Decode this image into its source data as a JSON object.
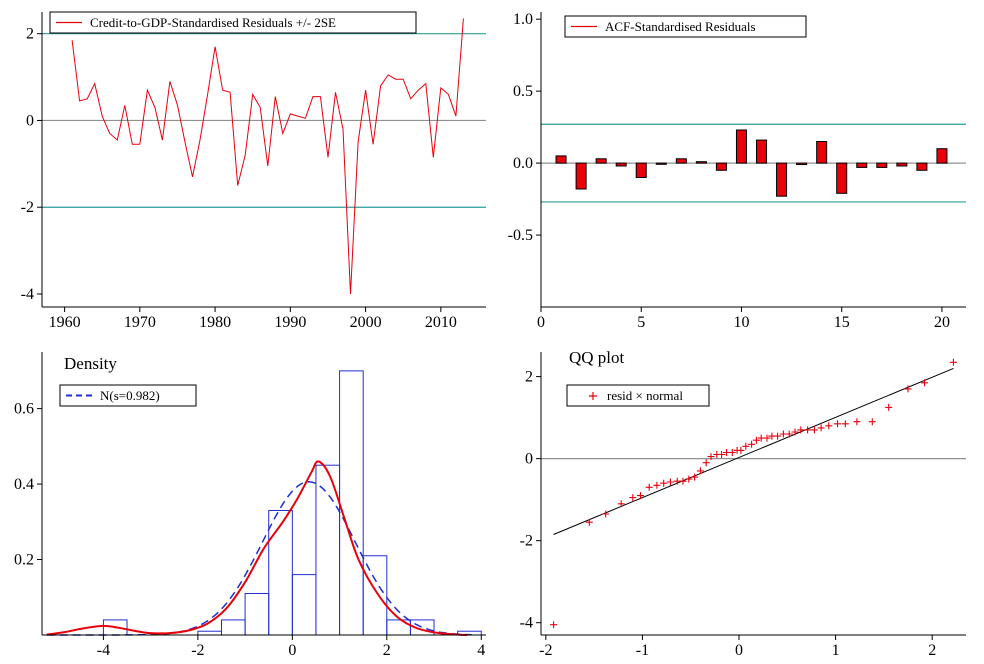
{
  "chart_data": [
    {
      "type": "line",
      "panel": "residuals",
      "title": "",
      "legend": {
        "label": "Credit-to-GDP-Standardised Residuals +/- 2SE",
        "position": "top-left"
      },
      "xlim": [
        1957,
        2016
      ],
      "ylim": [
        -4.3,
        2.5
      ],
      "xticks": [
        1960,
        1970,
        1980,
        1990,
        2000,
        2010
      ],
      "yticks": [
        -4,
        -2,
        0,
        2
      ],
      "bands": [
        2.0,
        -2.0
      ],
      "zero_line": 0,
      "x": [
        1961,
        1962,
        1963,
        1964,
        1965,
        1966,
        1967,
        1968,
        1969,
        1970,
        1971,
        1972,
        1973,
        1974,
        1975,
        1976,
        1977,
        1978,
        1979,
        1980,
        1981,
        1982,
        1983,
        1984,
        1985,
        1986,
        1987,
        1988,
        1989,
        1990,
        1991,
        1992,
        1993,
        1994,
        1995,
        1996,
        1997,
        1998,
        1999,
        2000,
        2001,
        2002,
        2003,
        2004,
        2005,
        2006,
        2007,
        2008,
        2009,
        2010,
        2011,
        2012,
        2013
      ],
      "values": [
        1.85,
        0.45,
        0.5,
        0.85,
        0.1,
        -0.3,
        -0.45,
        0.35,
        -0.55,
        -0.55,
        0.7,
        0.3,
        -0.45,
        0.9,
        0.35,
        -0.5,
        -1.3,
        -0.45,
        0.6,
        1.7,
        0.7,
        0.65,
        -1.5,
        -0.8,
        0.6,
        0.3,
        -1.05,
        0.55,
        -0.3,
        0.15,
        0.1,
        0.05,
        0.55,
        0.55,
        -0.85,
        0.65,
        -0.2,
        -4.0,
        -0.5,
        0.7,
        -0.55,
        0.8,
        1.05,
        0.95,
        0.95,
        0.5,
        0.7,
        0.85,
        -0.85,
        0.75,
        0.6,
        0.1,
        2.35
      ],
      "colors": {
        "series": "#e8000b",
        "bands": "#2a9d9d",
        "zero": "#909090"
      }
    },
    {
      "type": "bar",
      "panel": "acf",
      "title": "",
      "legend": {
        "label": "ACF-Standardised Residuals",
        "position": "top-left"
      },
      "xlim": [
        0,
        21.2
      ],
      "ylim": [
        -1.0,
        1.05
      ],
      "xticks": [
        0,
        5,
        10,
        15,
        20
      ],
      "yticks": [
        -0.5,
        0.0,
        0.5,
        1.0
      ],
      "ytick_labels": [
        "-0.5",
        "0.0",
        "0.5",
        "1.0"
      ],
      "bands": [
        0.27,
        -0.27
      ],
      "zero_line": 0,
      "x": [
        1,
        2,
        3,
        4,
        5,
        6,
        7,
        8,
        9,
        10,
        11,
        12,
        13,
        14,
        15,
        16,
        17,
        18,
        19,
        20
      ],
      "values": [
        0.05,
        -0.18,
        0.03,
        -0.02,
        -0.1,
        0.0,
        0.03,
        0.01,
        -0.05,
        0.23,
        0.16,
        -0.23,
        -0.01,
        0.15,
        -0.21,
        -0.03,
        -0.03,
        -0.02,
        -0.05,
        0.1
      ],
      "colors": {
        "bars": "#e8000b",
        "outline": "#000000",
        "bands": "#2a9d9d",
        "zero": "#909090"
      }
    },
    {
      "type": "bar",
      "panel": "density",
      "title": "Density",
      "legend": {
        "label": "N(s=0.982)",
        "position": "top-left"
      },
      "xlim": [
        -5.3,
        4.1
      ],
      "ylim": [
        0,
        0.75
      ],
      "xticks": [
        -4,
        -2,
        0,
        2,
        4
      ],
      "yticks": [
        0.2,
        0.4,
        0.6
      ],
      "histogram": {
        "edges": [
          -5.0,
          -4.5,
          -4.0,
          -3.5,
          -3.0,
          -2.5,
          -2.0,
          -1.5,
          -1.0,
          -0.5,
          0.0,
          0.5,
          1.0,
          1.5,
          2.0,
          2.5,
          3.0,
          3.5,
          4.0
        ],
        "density": [
          0,
          0,
          0.04,
          0,
          0,
          0,
          0.01,
          0.04,
          0.11,
          0.33,
          0.16,
          0.45,
          0.7,
          0.21,
          0.04,
          0.04,
          0,
          0.01
        ]
      },
      "kernel_density": {
        "x": [
          -5.2,
          -4.8,
          -4.5,
          -4.2,
          -4.0,
          -3.8,
          -3.5,
          -3.2,
          -3.0,
          -2.6,
          -2.2,
          -1.8,
          -1.4,
          -1.0,
          -0.6,
          -0.2,
          0.1,
          0.4,
          0.55,
          0.8,
          1.1,
          1.4,
          1.8,
          2.2,
          2.6,
          3.0,
          3.4,
          3.7
        ],
        "y": [
          0.001,
          0.008,
          0.016,
          0.022,
          0.024,
          0.022,
          0.015,
          0.008,
          0.005,
          0.005,
          0.012,
          0.03,
          0.07,
          0.14,
          0.23,
          0.3,
          0.36,
          0.43,
          0.46,
          0.42,
          0.31,
          0.2,
          0.11,
          0.05,
          0.02,
          0.007,
          0.002,
          0.0
        ]
      },
      "normal": {
        "mean": 0.35,
        "sd": 0.982
      },
      "colors": {
        "histogram": "#1f2fd0",
        "kernel": "#e8000b",
        "normal": "#1f2fd0"
      }
    },
    {
      "type": "scatter",
      "panel": "qq",
      "title": "QQ plot",
      "legend": {
        "label": "resid × normal",
        "position": "top-left"
      },
      "xlim": [
        -2.05,
        2.35
      ],
      "ylim": [
        -4.3,
        2.6
      ],
      "xticks": [
        -2,
        -1,
        0,
        1,
        2
      ],
      "yticks": [
        -4,
        -2,
        0,
        2
      ],
      "zero_line": 0,
      "x": [
        -1.92,
        -1.55,
        -1.38,
        -1.22,
        -1.1,
        -1.02,
        -0.93,
        -0.85,
        -0.78,
        -0.71,
        -0.64,
        -0.58,
        -0.52,
        -0.46,
        -0.4,
        -0.34,
        -0.29,
        -0.23,
        -0.18,
        -0.13,
        -0.07,
        -0.02,
        0.02,
        0.07,
        0.13,
        0.18,
        0.23,
        0.29,
        0.34,
        0.4,
        0.46,
        0.52,
        0.58,
        0.64,
        0.71,
        0.78,
        0.85,
        0.93,
        1.02,
        1.1,
        1.22,
        1.38,
        1.55,
        1.75,
        1.92,
        2.22
      ],
      "values": [
        -4.05,
        -1.55,
        -1.35,
        -1.1,
        -0.95,
        -0.9,
        -0.7,
        -0.65,
        -0.6,
        -0.57,
        -0.55,
        -0.55,
        -0.5,
        -0.45,
        -0.3,
        -0.1,
        0.05,
        0.1,
        0.1,
        0.15,
        0.15,
        0.2,
        0.2,
        0.3,
        0.35,
        0.45,
        0.5,
        0.5,
        0.55,
        0.55,
        0.6,
        0.6,
        0.65,
        0.7,
        0.7,
        0.7,
        0.75,
        0.8,
        0.85,
        0.85,
        0.9,
        0.9,
        1.25,
        1.7,
        1.85,
        2.35
      ],
      "reference_line": {
        "x": [
          -1.92,
          2.22
        ],
        "y": [
          -1.85,
          2.2
        ]
      },
      "colors": {
        "points": "#e8000b",
        "line": "#000000",
        "zero": "#909090"
      }
    }
  ]
}
